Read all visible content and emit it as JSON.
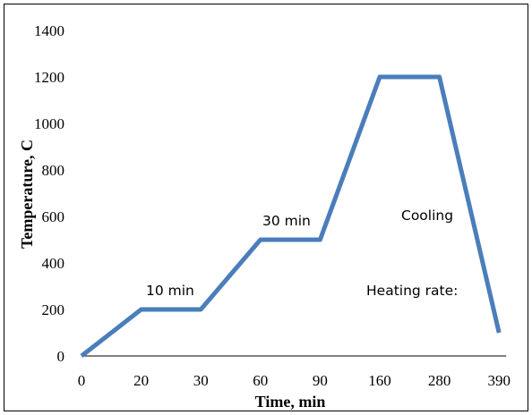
{
  "chart_data": {
    "type": "line",
    "title": "",
    "xlabel": "Time, min",
    "ylabel": "Temperature, C",
    "x_is_categorical": true,
    "categories": [
      "0",
      "20",
      "30",
      "60",
      "90",
      "160",
      "280",
      "390"
    ],
    "series": [
      {
        "color": "#4a7ebb",
        "points": [
          {
            "x": "0",
            "y": 0
          },
          {
            "x": "20",
            "y": 200
          },
          {
            "x": "30",
            "y": 200
          },
          {
            "x": "60",
            "y": 500
          },
          {
            "x": "90",
            "y": 500
          },
          {
            "x": "160",
            "y": 1200
          },
          {
            "x": "280",
            "y": 1200
          },
          {
            "x": "390",
            "y": 100
          }
        ]
      }
    ],
    "ylim": [
      0,
      1400
    ],
    "yticks": [
      0,
      200,
      400,
      600,
      800,
      1000,
      1200,
      1400
    ],
    "grid": false,
    "legend": "none",
    "annotations": [
      {
        "text": "10 min"
      },
      {
        "text": "30 min"
      },
      {
        "text": "Cooling"
      },
      {
        "text": "Heating rate:"
      }
    ]
  }
}
